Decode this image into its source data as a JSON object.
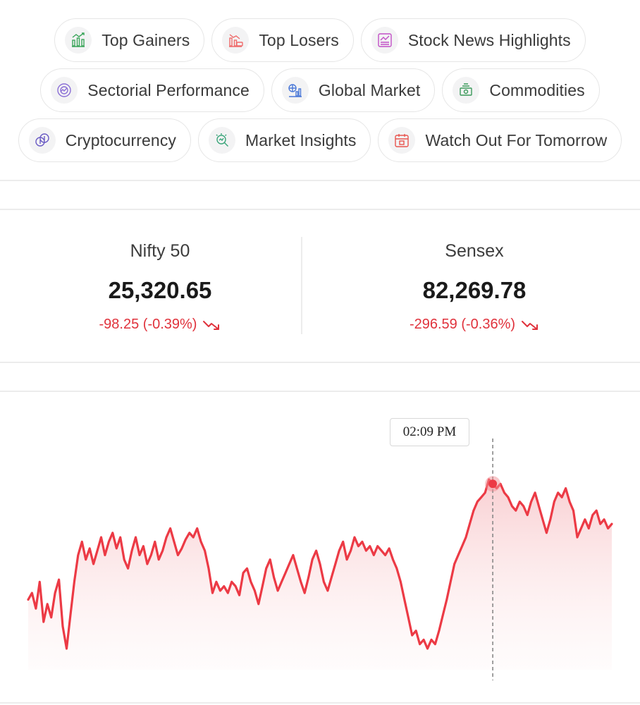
{
  "chips": [
    {
      "label": "Top Gainers",
      "icon": "top-gainers-icon",
      "color": "#3aa55a"
    },
    {
      "label": "Top Losers",
      "icon": "top-losers-icon",
      "color": "#ef6b6b"
    },
    {
      "label": "Stock News Highlights",
      "icon": "stock-news-icon",
      "color": "#c24fc7"
    },
    {
      "label": "Sectorial Performance",
      "icon": "sectorial-performance-icon",
      "color": "#8b6fd6"
    },
    {
      "label": "Global Market",
      "icon": "global-market-icon",
      "color": "#4a78d8"
    },
    {
      "label": "Commodities",
      "icon": "commodities-icon",
      "color": "#3a9a5a"
    },
    {
      "label": "Cryptocurrency",
      "icon": "cryptocurrency-icon",
      "color": "#6a5bc4"
    },
    {
      "label": "Market Insights",
      "icon": "market-insights-icon",
      "color": "#3aa57a"
    },
    {
      "label": "Watch Out For Tomorrow",
      "icon": "calendar-icon",
      "color": "#e8554f"
    }
  ],
  "indices": [
    {
      "name": "Nifty 50",
      "value": "25,320.65",
      "change": "-98.25 (-0.39%)"
    },
    {
      "name": "Sensex",
      "value": "82,269.78",
      "change": "-296.59 (-0.36%)"
    }
  ],
  "colors": {
    "negative": "#e0323c",
    "line": "#ec3a45"
  },
  "chart": {
    "tooltip": "02:09 PM"
  },
  "chart_data": {
    "type": "area",
    "series_values": [
      0.52,
      0.55,
      0.48,
      0.6,
      0.42,
      0.5,
      0.44,
      0.55,
      0.61,
      0.4,
      0.3,
      0.45,
      0.6,
      0.72,
      0.78,
      0.7,
      0.75,
      0.68,
      0.74,
      0.8,
      0.72,
      0.78,
      0.82,
      0.75,
      0.8,
      0.7,
      0.66,
      0.74,
      0.8,
      0.72,
      0.76,
      0.68,
      0.72,
      0.78,
      0.7,
      0.74,
      0.8,
      0.84,
      0.78,
      0.72,
      0.75,
      0.79,
      0.82,
      0.8,
      0.84,
      0.78,
      0.74,
      0.66,
      0.55,
      0.6,
      0.56,
      0.58,
      0.55,
      0.6,
      0.58,
      0.54,
      0.64,
      0.66,
      0.6,
      0.56,
      0.5,
      0.58,
      0.66,
      0.7,
      0.62,
      0.56,
      0.6,
      0.64,
      0.68,
      0.72,
      0.66,
      0.6,
      0.55,
      0.62,
      0.7,
      0.74,
      0.68,
      0.6,
      0.56,
      0.62,
      0.68,
      0.74,
      0.78,
      0.7,
      0.74,
      0.8,
      0.76,
      0.78,
      0.74,
      0.76,
      0.72,
      0.76,
      0.74,
      0.72,
      0.75,
      0.7,
      0.66,
      0.6,
      0.52,
      0.44,
      0.36,
      0.38,
      0.32,
      0.34,
      0.3,
      0.34,
      0.32,
      0.38,
      0.45,
      0.52,
      0.6,
      0.68,
      0.72,
      0.76,
      0.8,
      0.86,
      0.92,
      0.96,
      0.98,
      1.0,
      1.06,
      1.04,
      1.02,
      1.04,
      1.0,
      0.98,
      0.94,
      0.92,
      0.96,
      0.94,
      0.9,
      0.96,
      1.0,
      0.94,
      0.88,
      0.82,
      0.88,
      0.96,
      1.0,
      0.98,
      1.02,
      0.96,
      0.92,
      0.8,
      0.84,
      0.88,
      0.84,
      0.9,
      0.92,
      0.86,
      0.88,
      0.84,
      0.86
    ],
    "highlight_index": 121
  }
}
